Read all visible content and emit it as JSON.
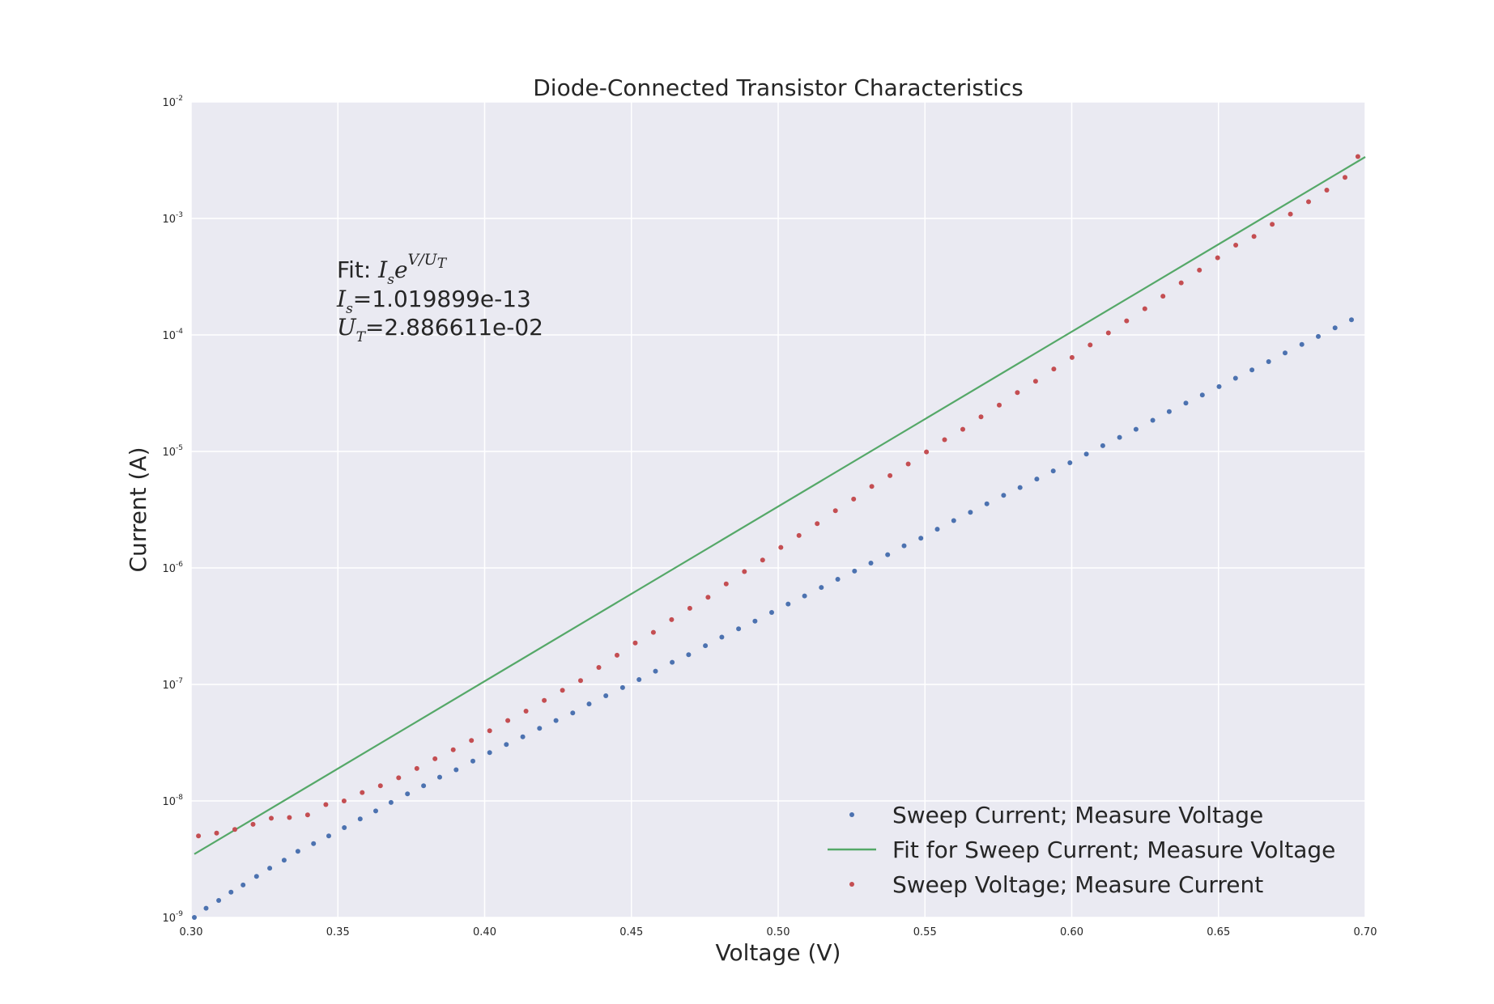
{
  "chart_data": {
    "type": "scatter",
    "title": "Diode-Connected Transistor Characteristics",
    "xlabel": "Voltage (V)",
    "ylabel": "Current (A)",
    "xlim": [
      0.3,
      0.7
    ],
    "ylim": [
      1e-09,
      0.01
    ],
    "yscale": "log",
    "grid": true,
    "background": "#eaeaf2",
    "x_ticks": [
      0.3,
      0.35,
      0.4,
      0.45,
      0.5,
      0.55,
      0.6,
      0.65,
      0.7
    ],
    "x_tick_labels": [
      "0.30",
      "0.35",
      "0.40",
      "0.45",
      "0.50",
      "0.55",
      "0.60",
      "0.65",
      "0.70"
    ],
    "y_ticks": [
      {
        "base": "10",
        "exp": "-9",
        "value": 1e-09
      },
      {
        "base": "10",
        "exp": "-8",
        "value": 1e-08
      },
      {
        "base": "10",
        "exp": "-7",
        "value": 1e-07
      },
      {
        "base": "10",
        "exp": "-6",
        "value": 1e-06
      },
      {
        "base": "10",
        "exp": "-5",
        "value": 1e-05
      },
      {
        "base": "10",
        "exp": "-4",
        "value": 0.0001
      },
      {
        "base": "10",
        "exp": "-3",
        "value": 0.001
      },
      {
        "base": "10",
        "exp": "-2",
        "value": 0.01
      }
    ],
    "legend_position": "lower-right",
    "annotation": {
      "line1_prefix": "Fit: ",
      "line1_I": "I",
      "line1_s": "s",
      "line1_e": "e",
      "line1_exp": "V/U",
      "line1_exp_sub": "T",
      "line2_sym": "I",
      "line2_sub": "s",
      "line2_value": "=1.019899e-13",
      "line3_sym": "U",
      "line3_sub": "T",
      "line3_value": "=2.886611e-02"
    },
    "series": [
      {
        "name": "Sweep Current; Measure Voltage",
        "kind": "points",
        "color": "#4c72b0",
        "x": [
          0.3011,
          0.3051,
          0.3094,
          0.3136,
          0.3177,
          0.3223,
          0.3268,
          0.3317,
          0.3364,
          0.3417,
          0.3469,
          0.3522,
          0.3576,
          0.3629,
          0.3681,
          0.3737,
          0.3792,
          0.3847,
          0.3903,
          0.396,
          0.4017,
          0.4074,
          0.413,
          0.4187,
          0.4243,
          0.43,
          0.4356,
          0.4413,
          0.447,
          0.4526,
          0.4582,
          0.4639,
          0.4695,
          0.4752,
          0.4808,
          0.4865,
          0.4921,
          0.4978,
          0.5034,
          0.509,
          0.5147,
          0.5203,
          0.526,
          0.5316,
          0.5373,
          0.5429,
          0.5486,
          0.5542,
          0.5598,
          0.5655,
          0.5711,
          0.5768,
          0.5824,
          0.5881,
          0.5937,
          0.5994,
          0.605,
          0.6106,
          0.6163,
          0.6219,
          0.6276,
          0.6332,
          0.6389,
          0.6445,
          0.6502,
          0.6558,
          0.6614,
          0.6671,
          0.6727,
          0.6784,
          0.684,
          0.6897,
          0.6953
        ],
        "y": [
          1e-09,
          1.2e-09,
          1.4e-09,
          1.65e-09,
          1.9e-09,
          2.25e-09,
          2.65e-09,
          3.1e-09,
          3.7e-09,
          4.3e-09,
          5e-09,
          5.9e-09,
          7e-09,
          8.2e-09,
          9.7e-09,
          1.15e-08,
          1.35e-08,
          1.6e-08,
          1.85e-08,
          2.2e-08,
          2.6e-08,
          3.05e-08,
          3.55e-08,
          4.2e-08,
          4.9e-08,
          5.7e-08,
          6.8e-08,
          8e-08,
          9.4e-08,
          1.1e-07,
          1.3e-07,
          1.55e-07,
          1.8e-07,
          2.15e-07,
          2.55e-07,
          3e-07,
          3.5e-07,
          4.15e-07,
          4.9e-07,
          5.75e-07,
          6.8e-07,
          8e-07,
          9.4e-07,
          1.1e-06,
          1.3e-06,
          1.55e-06,
          1.8e-06,
          2.15e-06,
          2.55e-06,
          3e-06,
          3.55e-06,
          4.2e-06,
          4.9e-06,
          5.8e-06,
          6.8e-06,
          8e-06,
          9.5e-06,
          1.12e-05,
          1.32e-05,
          1.55e-05,
          1.85e-05,
          2.2e-05,
          2.6e-05,
          3.05e-05,
          3.6e-05,
          4.25e-05,
          5e-05,
          5.9e-05,
          7e-05,
          8.3e-05,
          9.7e-05,
          0.000115,
          0.000135
        ]
      },
      {
        "name": "Fit for Sweep Current; Measure Voltage",
        "kind": "line",
        "color": "#55a868",
        "x": [
          0.3011,
          0.7
        ],
        "y": [
          3.5e-09,
          0.00337
        ]
      },
      {
        "name": "Sweep Voltage; Measure Current",
        "kind": "points",
        "color": "#c44e52",
        "x": [
          0.3025,
          0.3087,
          0.3149,
          0.3211,
          0.3273,
          0.3335,
          0.3397,
          0.3459,
          0.3521,
          0.3583,
          0.3645,
          0.3707,
          0.3769,
          0.3831,
          0.3893,
          0.3955,
          0.4017,
          0.4079,
          0.4141,
          0.4203,
          0.4265,
          0.4327,
          0.4389,
          0.4451,
          0.4513,
          0.4575,
          0.4637,
          0.4699,
          0.4761,
          0.4823,
          0.4885,
          0.4947,
          0.5009,
          0.5071,
          0.5133,
          0.5195,
          0.5257,
          0.5319,
          0.5381,
          0.5443,
          0.5505,
          0.5567,
          0.5629,
          0.5691,
          0.5753,
          0.5815,
          0.5877,
          0.5939,
          0.6001,
          0.6063,
          0.6125,
          0.6187,
          0.6249,
          0.6311,
          0.6373,
          0.6435,
          0.6497,
          0.6559,
          0.6621,
          0.6683,
          0.6745,
          0.6807,
          0.6869,
          0.6931,
          0.6975
        ],
        "y": [
          5e-09,
          5.3e-09,
          5.7e-09,
          6.3e-09,
          7.1e-09,
          7.2e-09,
          7.6e-09,
          9.3e-09,
          1e-08,
          1.18e-08,
          1.35e-08,
          1.58e-08,
          1.9e-08,
          2.3e-08,
          2.75e-08,
          3.3e-08,
          4e-08,
          4.9e-08,
          5.9e-08,
          7.3e-08,
          8.9e-08,
          1.08e-07,
          1.4e-07,
          1.78e-07,
          2.27e-07,
          2.8e-07,
          3.6e-07,
          4.5e-07,
          5.6e-07,
          7.3e-07,
          9.3e-07,
          1.17e-06,
          1.5e-06,
          1.9e-06,
          2.4e-06,
          3.1e-06,
          3.9e-06,
          5e-06,
          6.2e-06,
          7.8e-06,
          9.9e-06,
          1.26e-05,
          1.55e-05,
          1.98e-05,
          2.5e-05,
          3.2e-05,
          4e-05,
          5.1e-05,
          6.4e-05,
          8.2e-05,
          0.000104,
          0.000132,
          0.000168,
          0.000215,
          0.00028,
          0.00036,
          0.00046,
          0.00059,
          0.0007,
          0.00089,
          0.00109,
          0.00139,
          0.00175,
          0.00225,
          0.0034
        ]
      }
    ]
  }
}
